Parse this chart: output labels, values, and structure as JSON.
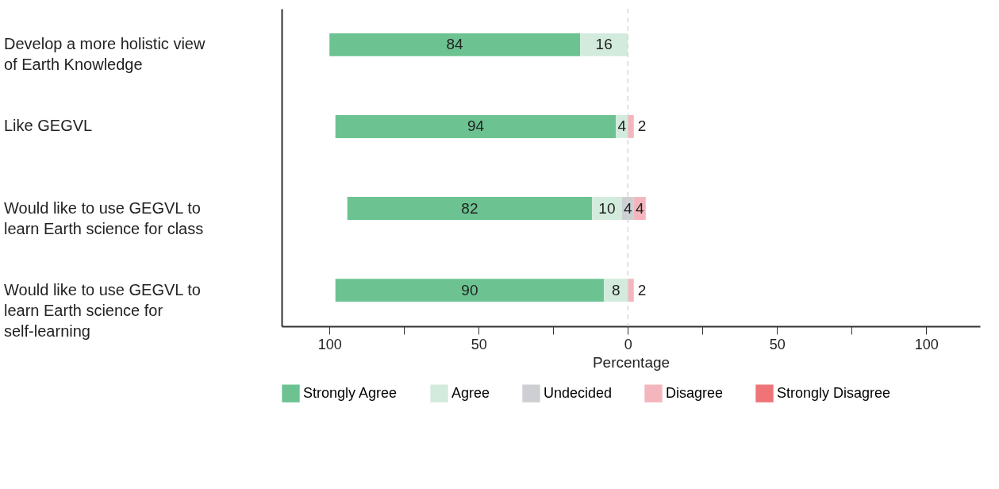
{
  "chart_data": {
    "type": "bar",
    "orientation": "horizontal",
    "stacked": true,
    "xlabel": "Percentage",
    "categories": [
      "Develop a more holistic view of Earth Knowledge",
      "Like GEGVL",
      "Would like to use GEGVL to learn Earth science for class",
      "Would like to use GEGVL to learn Earth science for self-learning"
    ],
    "series": [
      {
        "name": "Strongly Agree",
        "color": "#6cc391",
        "values": [
          84,
          94,
          82,
          90
        ],
        "base": [
          -100,
          -98,
          -94,
          -98
        ]
      },
      {
        "name": "Agree",
        "color": "#d2ebdc",
        "values": [
          16,
          4,
          10,
          8
        ],
        "base": [
          -16,
          -4,
          -12,
          -8
        ]
      },
      {
        "name": "Undecided",
        "color": "#cdcfd2",
        "values": [
          null,
          null,
          4,
          null
        ],
        "base": [
          null,
          null,
          -2,
          null
        ]
      },
      {
        "name": "Disagree",
        "color": "#f4b6bd",
        "values": [
          null,
          2,
          4,
          2
        ],
        "base": [
          null,
          0,
          2,
          0
        ]
      },
      {
        "name": "Strongly Disagree",
        "color": "#ee7478",
        "values": [
          null,
          null,
          null,
          null
        ],
        "base": [
          null,
          null,
          null,
          null
        ]
      }
    ],
    "xlim": [
      -116,
      118
    ],
    "xticks": [
      {
        "value": -100,
        "label": "100"
      },
      {
        "value": -75,
        "label": null
      },
      {
        "value": -50,
        "label": "50"
      },
      {
        "value": -25,
        "label": null
      },
      0,
      {
        "value": 25,
        "label": null
      },
      50,
      {
        "value": 75,
        "label": null
      },
      100
    ],
    "ref_lines": [
      {
        "axis": "x",
        "value": 0,
        "color": "#d9d9d9",
        "line_style": "dashed"
      }
    ],
    "data_labels": true,
    "legend": "bottom",
    "grid": false
  }
}
